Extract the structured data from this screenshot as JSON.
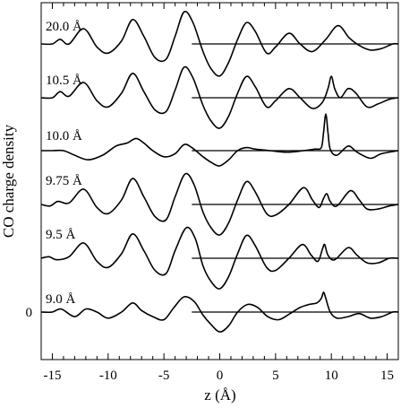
{
  "chart_data": {
    "type": "line",
    "xlabel": "z (Å)",
    "ylabel": "CO charge density",
    "xlim": [
      -16,
      16
    ],
    "x_ticks": [
      "-15",
      "-10",
      "-5",
      "0",
      "5",
      "10",
      "15"
    ],
    "x_tick_values": [
      -15,
      -10,
      -5,
      0,
      5,
      10,
      15
    ],
    "y_ticks": [
      "0"
    ],
    "grid": false,
    "baseline_range": [
      -2.5,
      16
    ],
    "series": [
      {
        "name": "20.0 Å",
        "points": [
          [
            -16,
            0.0
          ],
          [
            -15,
            0.0
          ],
          [
            -14.3,
            0.3
          ],
          [
            -13.5,
            0.0
          ],
          [
            -12.2,
            1.0
          ],
          [
            -11,
            -0.2
          ],
          [
            -10,
            -0.6
          ],
          [
            -8.8,
            0.2
          ],
          [
            -7.8,
            1.6
          ],
          [
            -6.8,
            0.5
          ],
          [
            -5.8,
            -0.9
          ],
          [
            -4.8,
            -1.0
          ],
          [
            -4,
            0.5
          ],
          [
            -3.2,
            2.1
          ],
          [
            -2.4,
            1.4
          ],
          [
            -1.5,
            -0.5
          ],
          [
            -0.8,
            -1.6
          ],
          [
            0,
            -2.1
          ],
          [
            0.8,
            -1.2
          ],
          [
            1.6,
            0.3
          ],
          [
            2.4,
            1.4
          ],
          [
            3.2,
            0.8
          ],
          [
            4.2,
            -0.6
          ],
          [
            5,
            -0.2
          ],
          [
            6.2,
            0.7
          ],
          [
            7.2,
            0.0
          ],
          [
            8.3,
            -0.5
          ],
          [
            9.5,
            0.3
          ],
          [
            10.6,
            1.2
          ],
          [
            11.6,
            0.4
          ],
          [
            12.5,
            -0.1
          ],
          [
            13.5,
            -0.4
          ],
          [
            14.5,
            -0.3
          ],
          [
            15.5,
            0.0
          ],
          [
            16,
            0.0
          ]
        ]
      },
      {
        "name": "10.5 Å",
        "points": [
          [
            -16,
            0.0
          ],
          [
            -15,
            0.0
          ],
          [
            -14.3,
            0.4
          ],
          [
            -13.5,
            0.1
          ],
          [
            -12.2,
            1.0
          ],
          [
            -11,
            -0.2
          ],
          [
            -10,
            -0.6
          ],
          [
            -8.8,
            0.3
          ],
          [
            -7.8,
            1.6
          ],
          [
            -6.8,
            0.4
          ],
          [
            -5.8,
            -0.8
          ],
          [
            -4.8,
            -0.9
          ],
          [
            -4,
            0.5
          ],
          [
            -3.2,
            2.0
          ],
          [
            -2.4,
            1.3
          ],
          [
            -1.5,
            -0.5
          ],
          [
            -0.8,
            -1.5
          ],
          [
            0,
            -2.0
          ],
          [
            0.8,
            -1.2
          ],
          [
            1.6,
            0.3
          ],
          [
            2.4,
            1.4
          ],
          [
            3.2,
            0.7
          ],
          [
            4.2,
            -0.6
          ],
          [
            5,
            -0.2
          ],
          [
            6.2,
            0.6
          ],
          [
            7.2,
            0.0
          ],
          [
            8.3,
            -0.7
          ],
          [
            9.2,
            -0.3
          ],
          [
            9.7,
            0.6
          ],
          [
            10,
            1.4
          ],
          [
            10.3,
            0.6
          ],
          [
            10.8,
            0.0
          ],
          [
            11.5,
            0.6
          ],
          [
            12.2,
            0.3
          ],
          [
            13.2,
            -0.6
          ],
          [
            14.2,
            -0.4
          ],
          [
            15.2,
            -0.1
          ],
          [
            16,
            0.0
          ]
        ]
      },
      {
        "name": "10.0 Å",
        "points": [
          [
            -16,
            0.0
          ],
          [
            -15,
            0.0
          ],
          [
            -14,
            0.0
          ],
          [
            -13,
            -0.3
          ],
          [
            -11.8,
            -0.6
          ],
          [
            -10.5,
            -0.3
          ],
          [
            -9.3,
            0.3
          ],
          [
            -8.3,
            0.5
          ],
          [
            -7.5,
            0.8
          ],
          [
            -6.8,
            0.5
          ],
          [
            -6,
            0.0
          ],
          [
            -5,
            -0.4
          ],
          [
            -4,
            -0.2
          ],
          [
            -3.2,
            0.4
          ],
          [
            -2.5,
            0.2
          ],
          [
            -1.5,
            -0.4
          ],
          [
            -0.7,
            -0.8
          ],
          [
            0,
            -1.0
          ],
          [
            0.8,
            -0.6
          ],
          [
            1.6,
            0.0
          ],
          [
            2.4,
            0.2
          ],
          [
            3.2,
            0.1
          ],
          [
            4.5,
            0.0
          ],
          [
            6,
            -0.1
          ],
          [
            7.5,
            0.0
          ],
          [
            8.5,
            0.1
          ],
          [
            9.1,
            0.2
          ],
          [
            9.3,
            1.2
          ],
          [
            9.5,
            2.4
          ],
          [
            9.7,
            1.2
          ],
          [
            9.9,
            0.1
          ],
          [
            10.5,
            -0.3
          ],
          [
            11.5,
            0.3
          ],
          [
            12.3,
            -0.1
          ],
          [
            13.5,
            -0.5
          ],
          [
            14.5,
            -0.2
          ],
          [
            16,
            0.0
          ]
        ]
      },
      {
        "name": "9.75 Å",
        "points": [
          [
            -16,
            0.0
          ],
          [
            -15.2,
            -0.1
          ],
          [
            -14.5,
            0.2
          ],
          [
            -13.5,
            0.1
          ],
          [
            -12.2,
            1.0
          ],
          [
            -11,
            -0.2
          ],
          [
            -10,
            -0.6
          ],
          [
            -8.8,
            0.3
          ],
          [
            -7.8,
            1.7
          ],
          [
            -6.8,
            0.5
          ],
          [
            -5.8,
            -0.8
          ],
          [
            -4.8,
            -1.0
          ],
          [
            -4,
            0.5
          ],
          [
            -3.1,
            2.0
          ],
          [
            -2.3,
            1.3
          ],
          [
            -1.5,
            -0.5
          ],
          [
            -0.8,
            -1.5
          ],
          [
            0,
            -2.0
          ],
          [
            0.8,
            -1.2
          ],
          [
            1.6,
            0.3
          ],
          [
            2.4,
            1.5
          ],
          [
            3.2,
            0.8
          ],
          [
            4.2,
            -0.6
          ],
          [
            5,
            -0.7
          ],
          [
            6.2,
            0.0
          ],
          [
            7.5,
            1.1
          ],
          [
            8.3,
            0.3
          ],
          [
            8.9,
            -0.2
          ],
          [
            9.3,
            0.4
          ],
          [
            9.6,
            0.7
          ],
          [
            9.9,
            0.2
          ],
          [
            10.5,
            -0.1
          ],
          [
            11.7,
            0.9
          ],
          [
            12.5,
            0.3
          ],
          [
            13.2,
            -0.3
          ],
          [
            14.2,
            -0.3
          ],
          [
            15.2,
            -0.1
          ],
          [
            16,
            0.0
          ]
        ]
      },
      {
        "name": "9.5 Å",
        "points": [
          [
            -16,
            0.0
          ],
          [
            -15.3,
            0.1
          ],
          [
            -14.6,
            -0.1
          ],
          [
            -13.5,
            0.1
          ],
          [
            -12.2,
            1.0
          ],
          [
            -11,
            -0.2
          ],
          [
            -10,
            -0.6
          ],
          [
            -8.8,
            0.3
          ],
          [
            -7.8,
            1.6
          ],
          [
            -6.8,
            0.5
          ],
          [
            -5.8,
            -0.8
          ],
          [
            -4.8,
            -1.0
          ],
          [
            -4,
            0.5
          ],
          [
            -3,
            2.0
          ],
          [
            -2.2,
            1.3
          ],
          [
            -1.5,
            -0.5
          ],
          [
            -0.8,
            -1.5
          ],
          [
            0,
            -2.0
          ],
          [
            0.8,
            -1.2
          ],
          [
            1.6,
            0.3
          ],
          [
            2.4,
            1.5
          ],
          [
            3.2,
            0.8
          ],
          [
            4.2,
            -0.6
          ],
          [
            5,
            -0.8
          ],
          [
            6.2,
            0.0
          ],
          [
            7.4,
            0.9
          ],
          [
            8.2,
            0.2
          ],
          [
            8.8,
            -0.2
          ],
          [
            9.2,
            0.6
          ],
          [
            9.4,
            0.9
          ],
          [
            9.7,
            0.2
          ],
          [
            10.3,
            -0.1
          ],
          [
            11.5,
            0.7
          ],
          [
            12.3,
            0.2
          ],
          [
            13.2,
            -0.3
          ],
          [
            14.2,
            -0.3
          ],
          [
            15.2,
            0.0
          ],
          [
            16,
            0.0
          ]
        ]
      },
      {
        "name": "9.0 Å",
        "points": [
          [
            -16,
            0.0
          ],
          [
            -15,
            0.0
          ],
          [
            -14.2,
            0.2
          ],
          [
            -13,
            -0.3
          ],
          [
            -12,
            0.2
          ],
          [
            -11,
            0.0
          ],
          [
            -10,
            -0.4
          ],
          [
            -8.8,
            0.0
          ],
          [
            -7.8,
            0.6
          ],
          [
            -7,
            0.1
          ],
          [
            -6,
            -0.3
          ],
          [
            -5,
            -0.5
          ],
          [
            -4.1,
            0.3
          ],
          [
            -3.2,
            1.0
          ],
          [
            -2.3,
            0.7
          ],
          [
            -1.5,
            -0.2
          ],
          [
            -0.8,
            -0.8
          ],
          [
            0,
            -1.3
          ],
          [
            0.8,
            -0.9
          ],
          [
            1.6,
            0.0
          ],
          [
            2.5,
            0.5
          ],
          [
            3.4,
            0.3
          ],
          [
            4.3,
            -0.3
          ],
          [
            5.3,
            -0.5
          ],
          [
            6.3,
            -0.1
          ],
          [
            7.2,
            0.3
          ],
          [
            8,
            0.5
          ],
          [
            8.7,
            0.6
          ],
          [
            9.1,
            0.9
          ],
          [
            9.3,
            1.3
          ],
          [
            9.5,
            0.9
          ],
          [
            9.9,
            0.0
          ],
          [
            10.5,
            -0.4
          ],
          [
            11.5,
            -0.3
          ],
          [
            12.5,
            -0.1
          ],
          [
            13.5,
            -0.4
          ],
          [
            14.5,
            -0.3
          ],
          [
            15.5,
            0.0
          ],
          [
            16,
            0.0
          ]
        ]
      }
    ]
  }
}
